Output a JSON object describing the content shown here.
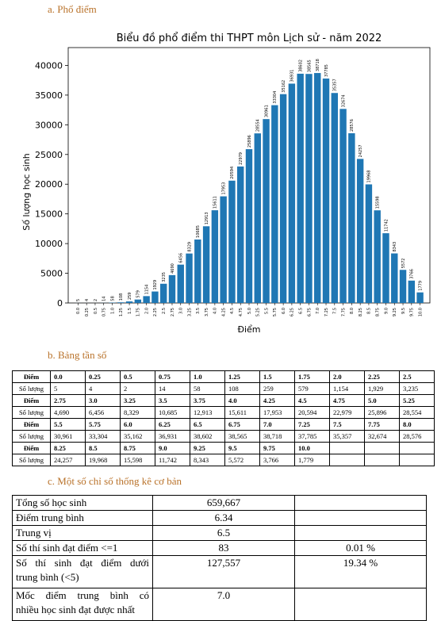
{
  "section_a": "a. Phổ điểm",
  "section_b": "b. Bảng tần số",
  "section_c": "c. Một số chỉ số thống kê cơ bản",
  "colors": {
    "bar": "#1f77b4",
    "section": "#b9722a"
  },
  "chart_data": {
    "type": "bar",
    "title": "Biểu đồ phổ điểm thi THPT môn Lịch sử - năm 2022",
    "xlabel": "Điểm",
    "ylabel": "Số lượng học sinh",
    "ylim": [
      0,
      43000
    ],
    "yticks": [
      0,
      5000,
      10000,
      15000,
      20000,
      25000,
      30000,
      35000,
      40000
    ],
    "categories": [
      "0.0",
      "0.25",
      "0.5",
      "0.75",
      "1.0",
      "1.25",
      "1.5",
      "1.75",
      "2.0",
      "2.25",
      "2.5",
      "2.75",
      "3.0",
      "3.25",
      "3.5",
      "3.75",
      "4.0",
      "4.25",
      "4.5",
      "4.75",
      "5.0",
      "5.25",
      "5.5",
      "5.75",
      "6.0",
      "6.25",
      "6.5",
      "6.75",
      "7.0",
      "7.25",
      "7.5",
      "7.75",
      "8.0",
      "8.25",
      "8.5",
      "8.75",
      "9.0",
      "9.25",
      "9.5",
      "9.75",
      "10.0"
    ],
    "values": [
      5,
      4,
      2,
      14,
      58,
      108,
      259,
      579,
      1154,
      1929,
      3235,
      4690,
      6456,
      8329,
      10685,
      12913,
      15611,
      17953,
      20594,
      22979,
      25896,
      28554,
      30961,
      33304,
      35162,
      36931,
      38602,
      38565,
      38718,
      37785,
      35357,
      32674,
      28576,
      24257,
      19968,
      15598,
      11742,
      8343,
      5572,
      3766,
      1779
    ],
    "grid": false
  },
  "freq_table": {
    "row_labels": {
      "score": "Điểm",
      "count": "Số lượng"
    },
    "blocks": [
      {
        "scores": [
          "0.0",
          "0.25",
          "0.5",
          "0.75",
          "1.0",
          "1.25",
          "1.5",
          "1.75",
          "2.0",
          "2.25",
          "2.5"
        ],
        "counts": [
          "5",
          "4",
          "2",
          "14",
          "58",
          "108",
          "259",
          "579",
          "1,154",
          "1,929",
          "3,235"
        ]
      },
      {
        "scores": [
          "2.75",
          "3.0",
          "3.25",
          "3.5",
          "3.75",
          "4.0",
          "4.25",
          "4.5",
          "4.75",
          "5.0",
          "5.25"
        ],
        "counts": [
          "4,690",
          "6,456",
          "8,329",
          "10,685",
          "12,913",
          "15,611",
          "17,953",
          "20,594",
          "22,979",
          "25,896",
          "28,554"
        ]
      },
      {
        "scores": [
          "5.5",
          "5.75",
          "6.0",
          "6.25",
          "6.5",
          "6.75",
          "7.0",
          "7.25",
          "7.5",
          "7.75",
          "8.0"
        ],
        "counts": [
          "30,961",
          "33,304",
          "35,162",
          "36,931",
          "38,602",
          "38,565",
          "38,718",
          "37,785",
          "35,357",
          "32,674",
          "28,576"
        ]
      },
      {
        "scores": [
          "8.25",
          "8.5",
          "8.75",
          "9.0",
          "9.25",
          "9.5",
          "9.75",
          "10.0",
          "",
          "",
          ""
        ],
        "counts": [
          "24,257",
          "19,968",
          "15,598",
          "11,742",
          "8,343",
          "5,572",
          "3,766",
          "1,779",
          "",
          "",
          ""
        ]
      }
    ]
  },
  "stats": {
    "rows": [
      {
        "label": "Tổng số học sinh",
        "value": "659,667",
        "pct": ""
      },
      {
        "label": "Điểm trung bình",
        "value": "6.34",
        "pct": ""
      },
      {
        "label": "Trung vị",
        "value": "6.5",
        "pct": ""
      },
      {
        "label": "Số thí sinh đạt điểm <=1",
        "value": "83",
        "pct": "0.01 %"
      },
      {
        "label_a": "Số thí sinh đạt điểm dưới",
        "label_b": "trung bình (<5)",
        "value": "127,557",
        "pct": "19.34 %"
      },
      {
        "label_a": "Mốc điểm trung bình có",
        "label_b": "nhiều học sinh đạt được nhất",
        "value": "7.0",
        "pct": ""
      }
    ]
  }
}
